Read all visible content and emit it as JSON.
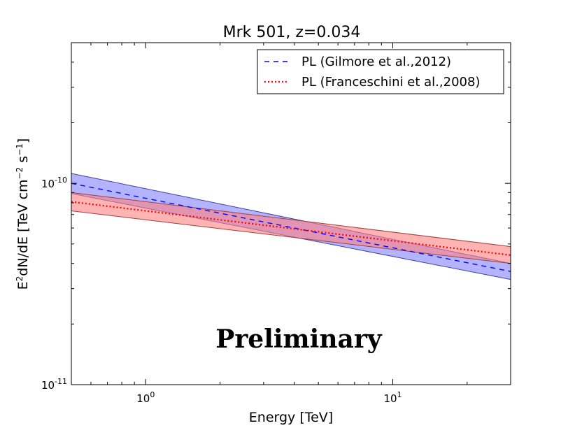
{
  "chart_data": {
    "type": "line",
    "title": "Mrk 501, z=0.034",
    "xlabel": "Energy [TeV]",
    "ylabel": "E²dN/dE [TeV cm⁻² s⁻¹]",
    "xscale": "log",
    "yscale": "log",
    "xlim": [
      0.5,
      30
    ],
    "ylim": [
      1e-11,
      5e-10
    ],
    "x_ticks": [
      {
        "value": 1,
        "base": "10",
        "exp": "0"
      },
      {
        "value": 10,
        "base": "10",
        "exp": "1"
      }
    ],
    "y_ticks": [
      {
        "value": 1e-11,
        "base": "10",
        "exp": "-11"
      },
      {
        "value": 1e-10,
        "base": "10",
        "exp": "-10"
      }
    ],
    "series": [
      {
        "name": "PL (Gilmore et al.,2012)",
        "style": "dashed",
        "color": "#0000ff",
        "band_color": "#8080ff",
        "band_edge": "#4040a0",
        "x": [
          0.5,
          30
        ],
        "y": [
          1e-10,
          3.65e-11
        ],
        "band_upper": [
          1.12e-10,
          4e-11
        ],
        "band_lower": [
          8.9e-11,
          3.33e-11
        ]
      },
      {
        "name": "PL (Franceschini et al.,2008)",
        "style": "dotted",
        "color": "#ff0000",
        "band_color": "#ff8080",
        "band_edge": "#a04040",
        "x": [
          0.5,
          30
        ],
        "y": [
          8.1e-11,
          4.4e-11
        ],
        "band_upper": [
          9e-11,
          4.85e-11
        ],
        "band_lower": [
          7.3e-11,
          4e-11
        ]
      }
    ],
    "legend_location": "top-right",
    "annotation": "Preliminary"
  }
}
